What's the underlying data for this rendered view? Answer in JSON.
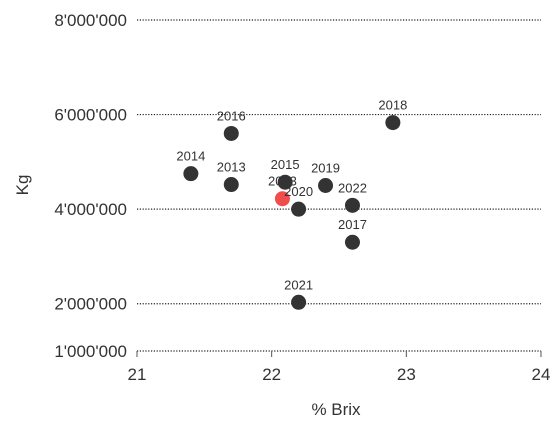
{
  "chart_data": {
    "type": "scatter",
    "xlabel": "% Brix",
    "ylabel": "Kg",
    "xlim": [
      21,
      24
    ],
    "ylim": [
      1000000,
      8000000
    ],
    "x_ticks": [
      {
        "value": 21,
        "label": "21"
      },
      {
        "value": 22,
        "label": "22"
      },
      {
        "value": 23,
        "label": "23"
      },
      {
        "value": 24,
        "label": "24"
      }
    ],
    "y_ticks": [
      {
        "value": 1000000,
        "label": "1'000'000"
      },
      {
        "value": 2000000,
        "label": "2'000'000"
      },
      {
        "value": 4000000,
        "label": "4'000'000"
      },
      {
        "value": 6000000,
        "label": "6'000'000"
      },
      {
        "value": 8000000,
        "label": "8'000'000"
      }
    ],
    "grid": "horizontal dotted",
    "points": [
      {
        "label": "2016",
        "x": 21.7,
        "y": 5600000,
        "color": "#333333"
      },
      {
        "label": "2018",
        "x": 22.9,
        "y": 5830000,
        "color": "#333333"
      },
      {
        "label": "2014",
        "x": 21.4,
        "y": 4750000,
        "color": "#333333"
      },
      {
        "label": "2013",
        "x": 21.7,
        "y": 4520000,
        "color": "#333333"
      },
      {
        "label": "2015",
        "x": 22.1,
        "y": 4570000,
        "color": "#333333"
      },
      {
        "label": "2019",
        "x": 22.4,
        "y": 4500000,
        "color": "#333333"
      },
      {
        "label": "2023",
        "x": 22.08,
        "y": 4220000,
        "color": "#ee3a3a"
      },
      {
        "label": "2020",
        "x": 22.2,
        "y": 4000000,
        "color": "#333333"
      },
      {
        "label": "2022",
        "x": 22.6,
        "y": 4080000,
        "color": "#333333"
      },
      {
        "label": "2017",
        "x": 22.6,
        "y": 3300000,
        "color": "#333333"
      },
      {
        "label": "2021",
        "x": 22.2,
        "y": 2030000,
        "color": "#333333"
      }
    ]
  }
}
